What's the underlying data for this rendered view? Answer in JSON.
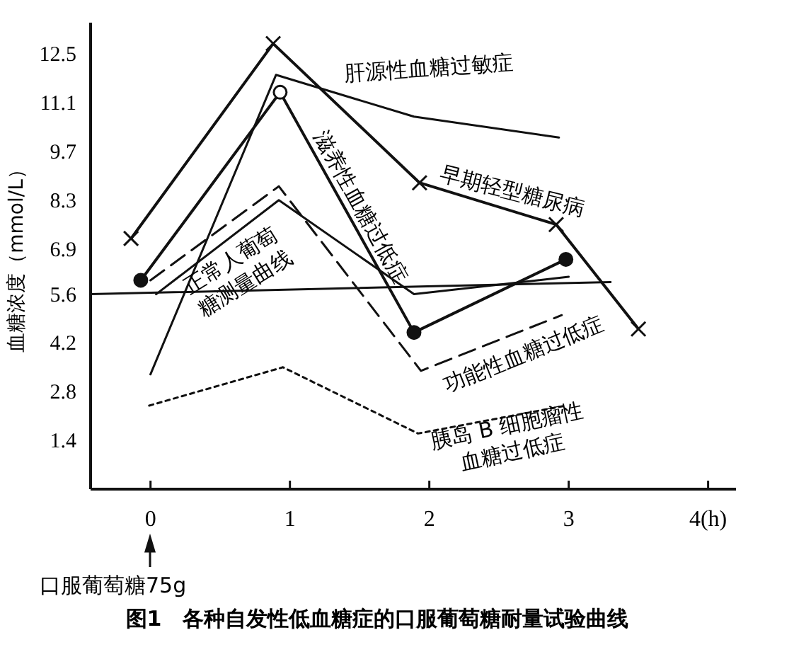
{
  "chart_data": {
    "type": "line",
    "title": "图1　各种自发性低血糖症的口服葡萄糖耐量试验曲线",
    "ylabel": "血糖浓度（mmol/L）",
    "xlim": [
      -0.43,
      4.2
    ],
    "ylim": [
      0,
      13.4
    ],
    "xticks": [
      0,
      1,
      2,
      3,
      {
        "value": 4,
        "label": "4(h)"
      }
    ],
    "yticks": [
      1.4,
      2.8,
      4.2,
      5.6,
      6.9,
      8.3,
      9.7,
      11.1,
      12.5
    ],
    "grid": false,
    "series": [
      {
        "name": "早期轻型糖尿病",
        "color": "#111111",
        "marker": "cross",
        "line_style": "solid",
        "x": [
          -0.14,
          0.88,
          1.93,
          2.91,
          3.5
        ],
        "values": [
          7.2,
          12.8,
          8.8,
          7.6,
          4.6
        ]
      },
      {
        "name": "肝源性血糖过敏症",
        "color": "#111111",
        "marker": "none",
        "line_style": "solid",
        "x": [
          0,
          0.9,
          1.89,
          2.93
        ],
        "values": [
          3.3,
          11.9,
          10.7,
          10.1
        ]
      },
      {
        "name": "滋养性血糖过低症",
        "color": "#111111",
        "marker": "circle",
        "line_style": "solid",
        "x": [
          -0.07,
          0.93,
          1.89,
          2.98
        ],
        "values": [
          6.0,
          11.4,
          4.5,
          6.6
        ]
      },
      {
        "name": "正常人葡萄\n糖测量曲线",
        "color": "#111111",
        "marker": "none",
        "line_style": "solid",
        "x": [
          0.04,
          0.92,
          1.89,
          3.0
        ],
        "values": [
          5.6,
          8.3,
          5.6,
          6.1
        ]
      },
      {
        "color": "#111111",
        "marker": "none",
        "line_style": "solid",
        "x": [
          -0.43,
          3.3
        ],
        "values": [
          5.6,
          5.95
        ]
      },
      {
        "name": "功能性血糖过低症",
        "color": "#111111",
        "marker": "none",
        "line_style": "dashed",
        "x": [
          0,
          0.92,
          1.94,
          2.95
        ],
        "values": [
          6.0,
          8.7,
          3.4,
          5.0
        ]
      },
      {
        "name": "胰岛 B 细胞瘤性\n血糖过低症",
        "color": "#111111",
        "marker": "none",
        "line_style": "dotted",
        "x": [
          -0.01,
          0.95,
          1.92,
          2.98
        ],
        "values": [
          2.4,
          3.5,
          1.6,
          2.4
        ]
      }
    ],
    "annotations": [
      "口服葡萄糖75g"
    ]
  }
}
